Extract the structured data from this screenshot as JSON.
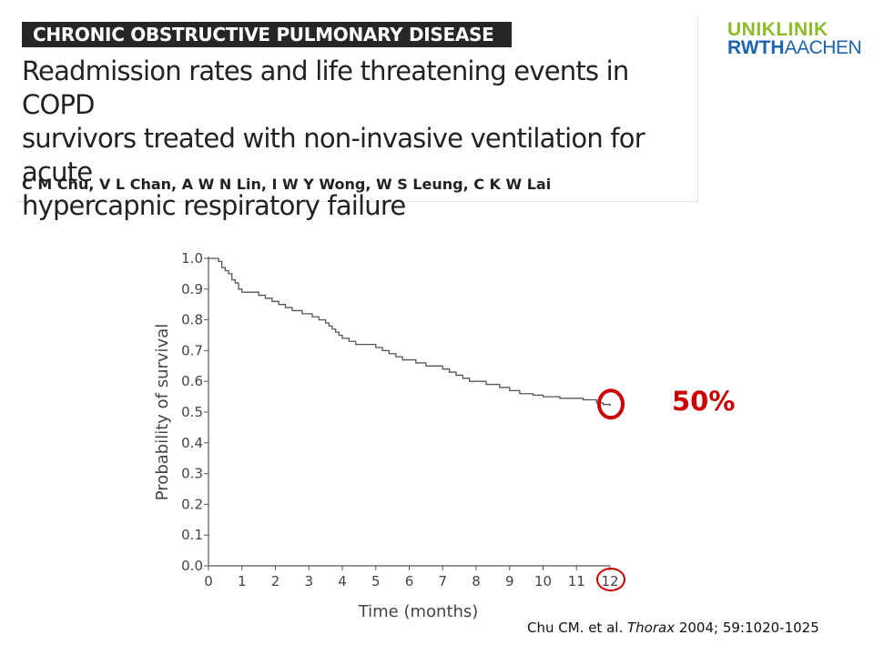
{
  "header": {
    "section_label": "CHRONIC OBSTRUCTIVE PULMONARY DISEASE",
    "title_line1": "Readmission rates and life threatening events in COPD",
    "title_line2": "survivors treated with non-invasive ventilation for acute",
    "title_line3": "hypercapnic respiratory failure",
    "authors": "C M Chu, V L Chan, A W N Lin, I W Y Wong, W S Leung, C K W Lai"
  },
  "logo": {
    "top": "UNIKLINIK",
    "bottom_a": "RWTH",
    "bottom_b": "AACHEN"
  },
  "annotation": {
    "value_label": "50%",
    "color": "#cc0000"
  },
  "citation": {
    "prefix": "Chu CM. et al. ",
    "journal": "Thorax",
    "suffix": " 2004; 59:1020-1025"
  },
  "chart_data": {
    "type": "line",
    "xlabel": "Time (months)",
    "ylabel": "Probability of survival",
    "xlim": [
      0,
      12
    ],
    "ylim": [
      0,
      1
    ],
    "x_ticks": [
      "0",
      "1",
      "2",
      "3",
      "4",
      "5",
      "6",
      "7",
      "8",
      "9",
      "10",
      "11",
      "12"
    ],
    "y_ticks": [
      "0.0",
      "0.1",
      "0.2",
      "0.3",
      "0.4",
      "0.5",
      "0.6",
      "0.7",
      "0.8",
      "0.9",
      "1.0"
    ],
    "grid": false,
    "series": [
      {
        "step": true,
        "color": "#555555",
        "x": [
          0,
          0.3,
          0.4,
          0.5,
          0.6,
          0.7,
          0.8,
          0.9,
          1.0,
          1.5,
          1.7,
          1.9,
          2.1,
          2.3,
          2.5,
          2.8,
          3.1,
          3.3,
          3.5,
          3.6,
          3.7,
          3.8,
          3.9,
          4.0,
          4.2,
          4.4,
          5.0,
          5.2,
          5.4,
          5.6,
          5.8,
          6.2,
          6.5,
          7.0,
          7.2,
          7.4,
          7.6,
          7.8,
          8.3,
          8.7,
          9.0,
          9.3,
          9.7,
          10.0,
          10.5,
          11.2,
          11.6,
          11.8,
          12.0
        ],
        "y": [
          1.0,
          0.99,
          0.97,
          0.96,
          0.95,
          0.93,
          0.92,
          0.9,
          0.89,
          0.88,
          0.87,
          0.86,
          0.85,
          0.84,
          0.83,
          0.82,
          0.81,
          0.8,
          0.79,
          0.78,
          0.77,
          0.76,
          0.75,
          0.74,
          0.73,
          0.72,
          0.71,
          0.7,
          0.69,
          0.68,
          0.67,
          0.66,
          0.65,
          0.64,
          0.63,
          0.62,
          0.61,
          0.6,
          0.59,
          0.58,
          0.57,
          0.56,
          0.555,
          0.55,
          0.545,
          0.54,
          0.53,
          0.525,
          0.52
        ]
      }
    ],
    "annotations": [
      {
        "type": "circle",
        "at_x": 12,
        "at_y": 0.52,
        "color": "#cc0000"
      },
      {
        "type": "circle_tick",
        "tick": "12",
        "color": "#cc0000"
      }
    ]
  }
}
